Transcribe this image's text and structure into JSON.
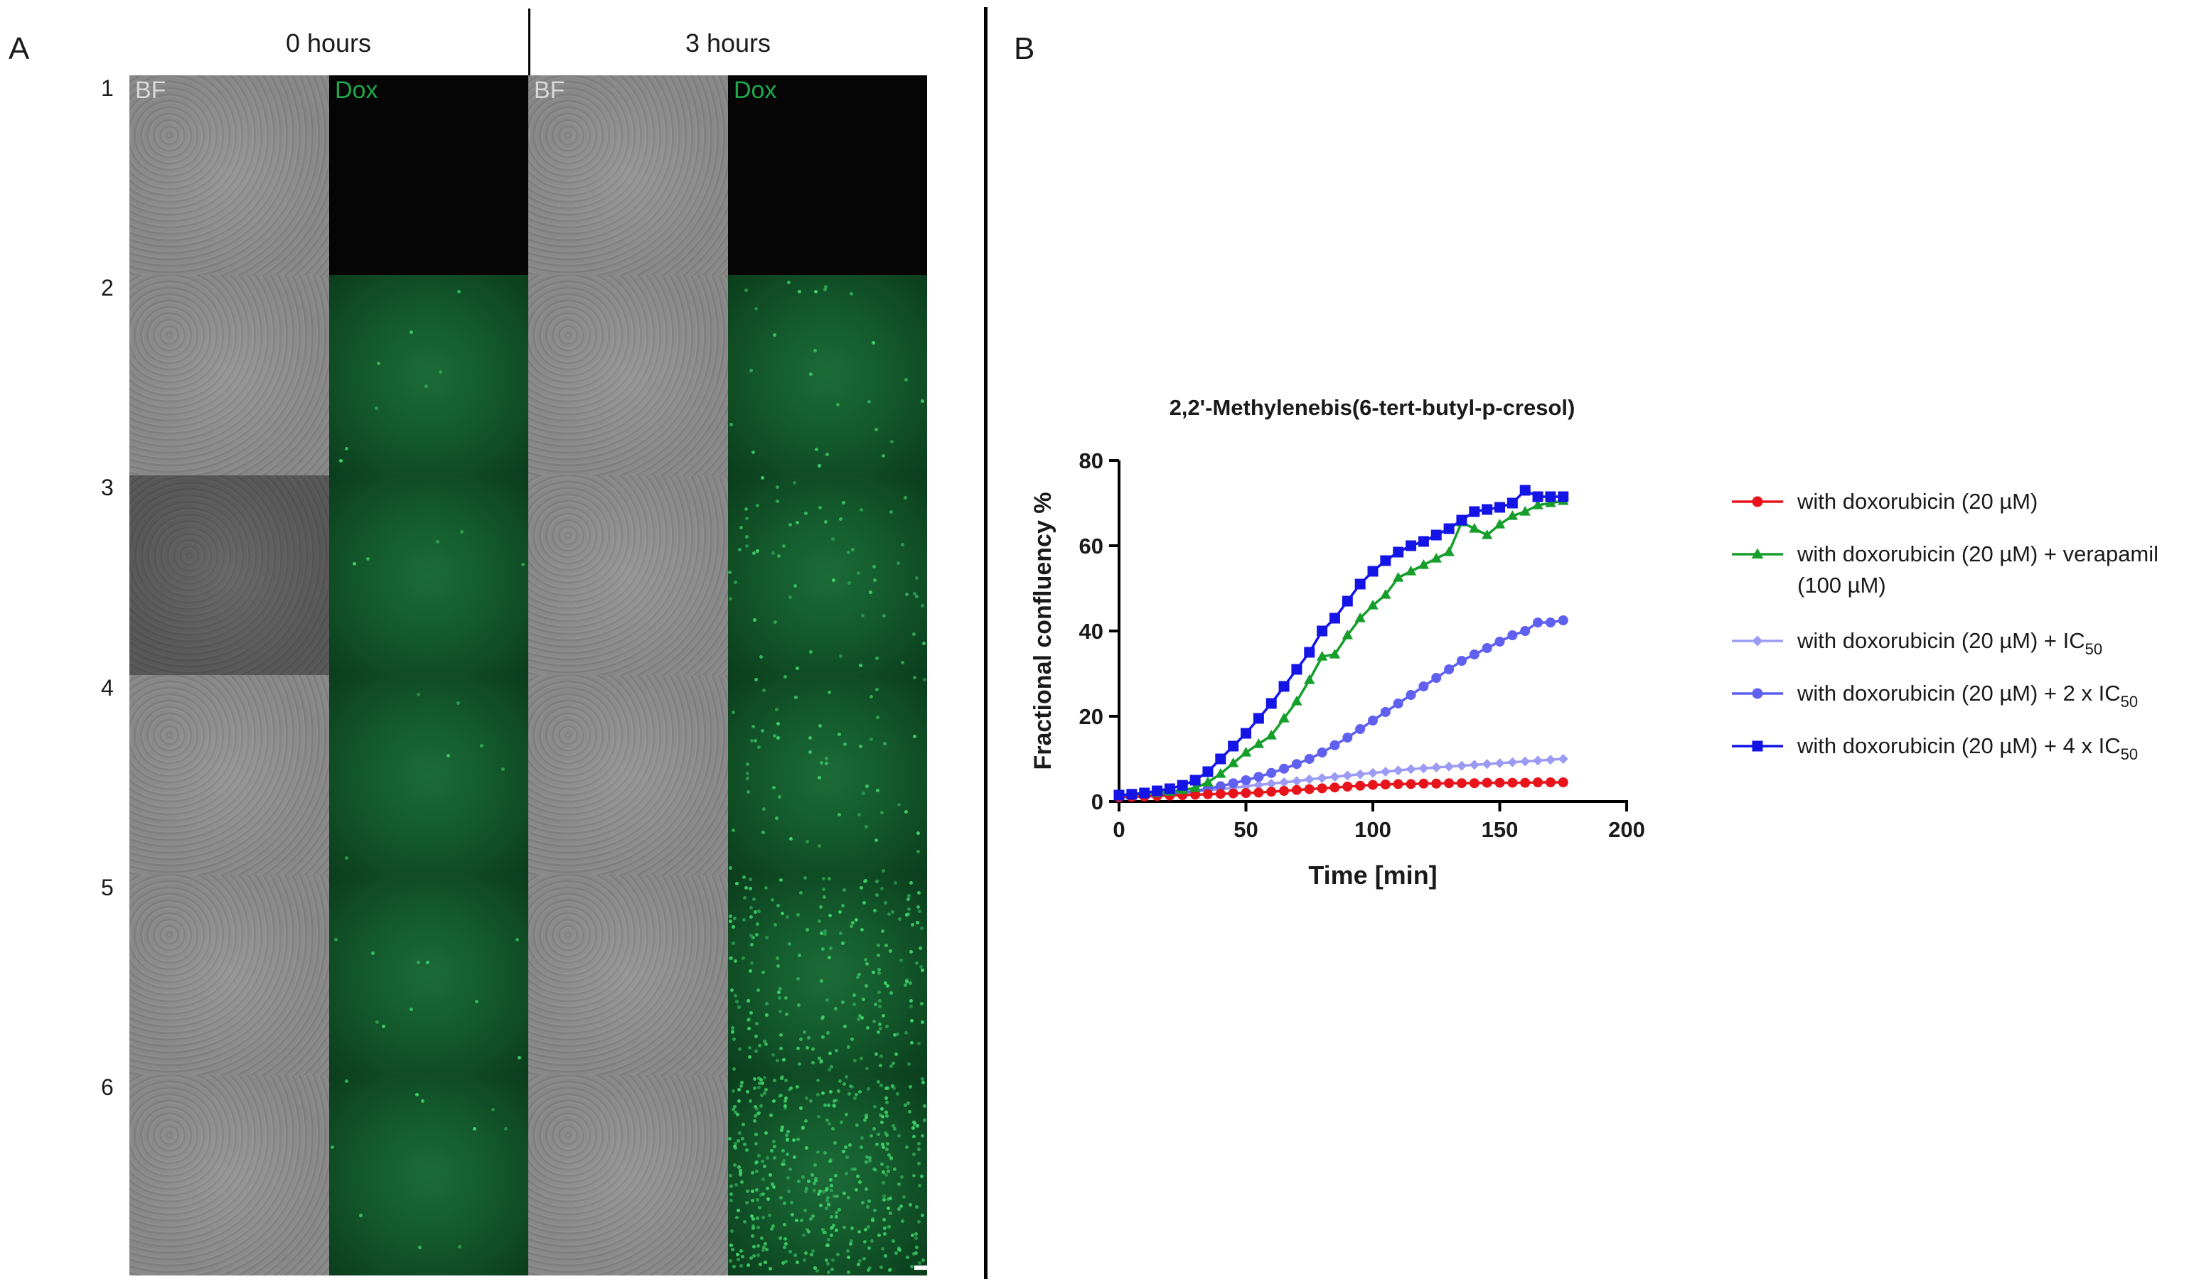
{
  "panelA": {
    "letter": "A",
    "time_headers": [
      "0 hours",
      "3 hours"
    ],
    "channel_labels": [
      "BF",
      "Dox",
      "BF",
      "Dox"
    ],
    "rows": [
      "1",
      "2",
      "3",
      "4",
      "5",
      "6"
    ],
    "colors": {
      "dox_green": "#1fa84c",
      "bf_label": "#d8d8d8"
    }
  },
  "panelB": {
    "letter": "B"
  },
  "chart_data": {
    "type": "line",
    "title": "2,2'-Methylenebis(6-tert-butyl-p-cresol)",
    "xlabel": "Time [min]",
    "ylabel": "Fractional confluency %",
    "xlim": [
      0,
      200
    ],
    "ylim": [
      0,
      80
    ],
    "xticks": [
      0,
      50,
      100,
      150,
      200
    ],
    "yticks": [
      0,
      20,
      40,
      60,
      80
    ],
    "legend_position": "right",
    "series": [
      {
        "name": "with doxorubicin (20 µM)",
        "legend_lines": [
          [
            "with doxorubicin (20 µM)",
            ""
          ]
        ],
        "color": "#e8141b",
        "marker": "circle",
        "x": [
          0,
          5,
          10,
          15,
          20,
          25,
          30,
          35,
          40,
          45,
          50,
          55,
          60,
          65,
          70,
          75,
          80,
          85,
          90,
          95,
          100,
          105,
          110,
          115,
          120,
          125,
          130,
          135,
          140,
          145,
          150,
          155,
          160,
          165,
          170,
          175
        ],
        "y": [
          1,
          1.1,
          1.2,
          1.3,
          1.4,
          1.5,
          1.6,
          1.7,
          1.8,
          1.9,
          2,
          2.1,
          2.3,
          2.5,
          2.7,
          2.9,
          3.1,
          3.3,
          3.5,
          3.7,
          3.9,
          4,
          4.1,
          4.1,
          4.2,
          4.2,
          4.3,
          4.3,
          4.3,
          4.4,
          4.4,
          4.4,
          4.4,
          4.5,
          4.5,
          4.5
        ]
      },
      {
        "name": "with doxorubicin (20 µM) + verapamil (100 µM)",
        "legend_lines": [
          [
            "with doxorubicin (20 µM) + verapamil",
            ""
          ],
          [
            "(100 µM)",
            ""
          ]
        ],
        "color": "#169e2b",
        "marker": "triangle",
        "x": [
          0,
          5,
          10,
          15,
          20,
          25,
          30,
          35,
          40,
          45,
          50,
          55,
          60,
          65,
          70,
          75,
          80,
          85,
          90,
          95,
          100,
          105,
          110,
          115,
          120,
          125,
          130,
          135,
          140,
          145,
          150,
          155,
          160,
          165,
          170,
          175
        ],
        "y": [
          1.5,
          1.6,
          1.8,
          2,
          2.3,
          2.7,
          3.2,
          4.5,
          6.5,
          9,
          11.5,
          13.5,
          15.5,
          19.5,
          23.5,
          28.5,
          34,
          34.5,
          39,
          43,
          46,
          48.5,
          52.5,
          54,
          55.5,
          57,
          58.5,
          65.5,
          64,
          62.5,
          65,
          67,
          68,
          69.5,
          70,
          70.5
        ]
      },
      {
        "name": "with doxorubicin (20 µM) + IC50",
        "legend_lines": [
          [
            "with doxorubicin (20 µM) + IC",
            "50"
          ]
        ],
        "color": "#9b9bf5",
        "marker": "diamond",
        "x": [
          0,
          5,
          10,
          15,
          20,
          25,
          30,
          35,
          40,
          45,
          50,
          55,
          60,
          65,
          70,
          75,
          80,
          85,
          90,
          95,
          100,
          105,
          110,
          115,
          120,
          125,
          130,
          135,
          140,
          145,
          150,
          155,
          160,
          165,
          170,
          175
        ],
        "y": [
          1,
          1.1,
          1.3,
          1.5,
          1.7,
          2,
          2.3,
          2.6,
          2.9,
          3.2,
          3.6,
          3.9,
          4.2,
          4.5,
          4.8,
          5.2,
          5.5,
          5.8,
          6.1,
          6.4,
          6.7,
          7,
          7.3,
          7.6,
          7.8,
          8,
          8.2,
          8.4,
          8.6,
          8.8,
          9,
          9.2,
          9.4,
          9.6,
          9.8,
          10
        ]
      },
      {
        "name": "with doxorubicin (20 µM) + 2 x IC50",
        "legend_lines": [
          [
            "with doxorubicin (20 µM) + 2 x IC",
            "50"
          ]
        ],
        "color": "#5f5ff0",
        "marker": "circle",
        "x": [
          0,
          5,
          10,
          15,
          20,
          25,
          30,
          35,
          40,
          45,
          50,
          55,
          60,
          65,
          70,
          75,
          80,
          85,
          90,
          95,
          100,
          105,
          110,
          115,
          120,
          125,
          130,
          135,
          140,
          145,
          150,
          155,
          160,
          165,
          170,
          175
        ],
        "y": [
          1,
          1.1,
          1.3,
          1.5,
          1.8,
          2.1,
          2.5,
          3,
          3.6,
          4.3,
          5,
          5.8,
          6.7,
          7.7,
          8.8,
          10,
          11.5,
          13.2,
          15,
          17,
          19,
          21,
          23,
          25,
          27,
          29,
          31,
          33,
          34.5,
          36,
          37.5,
          39,
          40,
          42,
          42,
          42.5
        ]
      },
      {
        "name": "with doxorubicin (20 µM) + 4 x IC50",
        "legend_lines": [
          [
            "with doxorubicin (20 µM) + 4 x IC",
            "50"
          ]
        ],
        "color": "#1414e6",
        "marker": "square",
        "x": [
          0,
          5,
          10,
          15,
          20,
          25,
          30,
          35,
          40,
          45,
          50,
          55,
          60,
          65,
          70,
          75,
          80,
          85,
          90,
          95,
          100,
          105,
          110,
          115,
          120,
          125,
          130,
          135,
          140,
          145,
          150,
          155,
          160,
          165,
          170,
          175
        ],
        "y": [
          1.5,
          1.7,
          2,
          2.5,
          3,
          3.8,
          5,
          7,
          10,
          13,
          16,
          19.5,
          23,
          27,
          31,
          35,
          40,
          43,
          47,
          51,
          54,
          56.5,
          58.5,
          60,
          61,
          62.5,
          64,
          66,
          68,
          68.5,
          69,
          70,
          73,
          71.5,
          71.5,
          71.5
        ]
      }
    ]
  }
}
